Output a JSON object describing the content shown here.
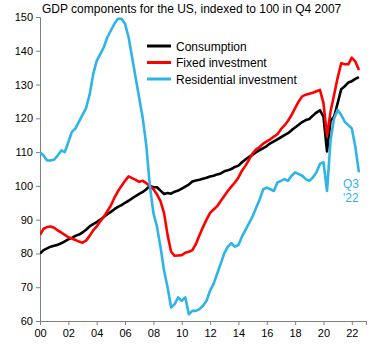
{
  "chart_data": {
    "type": "line",
    "title": "GDP components for the US, indexed to 100 in Q4 2007",
    "annotation": "Q3 '22",
    "legend": "top",
    "grid": false,
    "x": [
      2000,
      2000.25,
      2000.5,
      2000.75,
      2001,
      2001.25,
      2001.5,
      2001.75,
      2002,
      2002.25,
      2002.5,
      2002.75,
      2003,
      2003.25,
      2003.5,
      2003.75,
      2004,
      2004.25,
      2004.5,
      2004.75,
      2005,
      2005.25,
      2005.5,
      2005.75,
      2006,
      2006.25,
      2006.5,
      2006.75,
      2007,
      2007.25,
      2007.5,
      2007.75,
      2008,
      2008.25,
      2008.5,
      2008.75,
      2009,
      2009.25,
      2009.5,
      2009.75,
      2010,
      2010.25,
      2010.5,
      2010.75,
      2011,
      2011.25,
      2011.5,
      2011.75,
      2012,
      2012.25,
      2012.5,
      2012.75,
      2013,
      2013.25,
      2013.5,
      2013.75,
      2014,
      2014.25,
      2014.5,
      2014.75,
      2015,
      2015.25,
      2015.5,
      2015.75,
      2016,
      2016.25,
      2016.5,
      2016.75,
      2017,
      2017.25,
      2017.5,
      2017.75,
      2018,
      2018.25,
      2018.5,
      2018.75,
      2019,
      2019.25,
      2019.5,
      2019.75,
      2020,
      2020.25,
      2020.5,
      2020.75,
      2021,
      2021.25,
      2021.5,
      2021.75,
      2022,
      2022.25,
      2022.5
    ],
    "xlim": [
      2000,
      2023
    ],
    "xticks": [
      {
        "value": 2000,
        "label": "00"
      },
      {
        "value": 2002,
        "label": "02"
      },
      {
        "value": 2004,
        "label": "04"
      },
      {
        "value": 2006,
        "label": "06"
      },
      {
        "value": 2008,
        "label": "08"
      },
      {
        "value": 2010,
        "label": "10"
      },
      {
        "value": 2012,
        "label": "12"
      },
      {
        "value": 2014,
        "label": "14"
      },
      {
        "value": 2016,
        "label": "16"
      },
      {
        "value": 2018,
        "label": "18"
      },
      {
        "value": 2020,
        "label": "20"
      },
      {
        "value": 2022,
        "label": "22"
      }
    ],
    "ylim": [
      60,
      150
    ],
    "yticks": [
      60,
      70,
      80,
      90,
      100,
      110,
      120,
      130,
      140,
      150
    ],
    "series": [
      {
        "name": "Consumption",
        "color": "#000000",
        "values": [
          80,
          81,
          81.5,
          82,
          82.3,
          82.6,
          83,
          83.6,
          84.2,
          84.6,
          85.2,
          85.6,
          86.2,
          87,
          88,
          88.7,
          89.3,
          90,
          90.8,
          91.6,
          92.3,
          93.1,
          93.8,
          94.3,
          95,
          95.6,
          96.3,
          97,
          97.6,
          98.2,
          99,
          100,
          99.6,
          99.6,
          98.6,
          97.6,
          97.9,
          97.7,
          98.3,
          98.6,
          99.2,
          99.8,
          100.4,
          101.3,
          101.6,
          101.8,
          102.1,
          102.4,
          102.8,
          103,
          103.4,
          103.7,
          104.3,
          104.6,
          105,
          105.6,
          106,
          107,
          107.8,
          108.6,
          109.2,
          110,
          110.6,
          111.2,
          111.8,
          112.6,
          113.2,
          113.8,
          114.4,
          115,
          115.6,
          116.5,
          117.3,
          118.1,
          118.9,
          119.5,
          119.8,
          120.8,
          121.7,
          122.4,
          120.5,
          110.2,
          119.3,
          120.5,
          124.5,
          128.6,
          129.5,
          130.6,
          131,
          131.7,
          132.2
        ]
      },
      {
        "name": "Fixed investment",
        "color": "#ff0000",
        "values": [
          85.5,
          87.3,
          87.8,
          88,
          87.6,
          86.8,
          86.2,
          85.5,
          84.8,
          84.4,
          84,
          83.5,
          83.2,
          83.8,
          85.2,
          86.8,
          88,
          89.5,
          90.8,
          92.5,
          94.2,
          96.5,
          98.4,
          100,
          101.5,
          102.8,
          102.3,
          101.8,
          101.2,
          101.5,
          100.8,
          100,
          99,
          97.5,
          95.5,
          92,
          85.5,
          80.5,
          79.3,
          79.4,
          79.5,
          80.2,
          80.5,
          81,
          82.8,
          85.4,
          87.8,
          90,
          92,
          93,
          94,
          95.5,
          97,
          98.5,
          99.8,
          101,
          102.5,
          104.5,
          106,
          107.8,
          109.6,
          110.8,
          111.5,
          112.5,
          113.2,
          113.8,
          114.6,
          115.3,
          116.8,
          117.9,
          119.3,
          121,
          123,
          125,
          126.5,
          127,
          127.3,
          127.6,
          128,
          128.4,
          124.5,
          114.8,
          122,
          127,
          132,
          136.3,
          136,
          136,
          138,
          136.8,
          134.3
        ]
      },
      {
        "name": "Residential investment",
        "color": "#2fb4e8",
        "values": [
          110,
          109,
          107.5,
          107.5,
          107.8,
          109,
          110.5,
          110,
          113,
          116,
          117,
          119,
          121,
          123,
          127,
          133,
          137,
          139,
          141,
          144,
          146,
          148,
          149.5,
          149.5,
          148,
          144,
          138,
          132,
          126,
          120,
          112,
          100,
          92,
          88,
          82,
          75,
          70,
          64,
          65,
          67,
          66,
          67,
          62,
          63,
          63,
          63.5,
          64.5,
          66,
          69,
          71,
          74,
          77,
          80,
          82,
          83,
          82,
          82.5,
          85,
          87,
          89,
          91,
          93.5,
          96,
          99,
          99.5,
          99,
          98.5,
          101,
          101.5,
          102,
          101.5,
          103,
          104,
          103.5,
          103,
          102,
          101.5,
          102.5,
          104,
          106.5,
          107,
          98.5,
          113.5,
          120,
          122.5,
          121,
          119,
          118,
          117,
          111.5,
          104
        ]
      }
    ]
  }
}
